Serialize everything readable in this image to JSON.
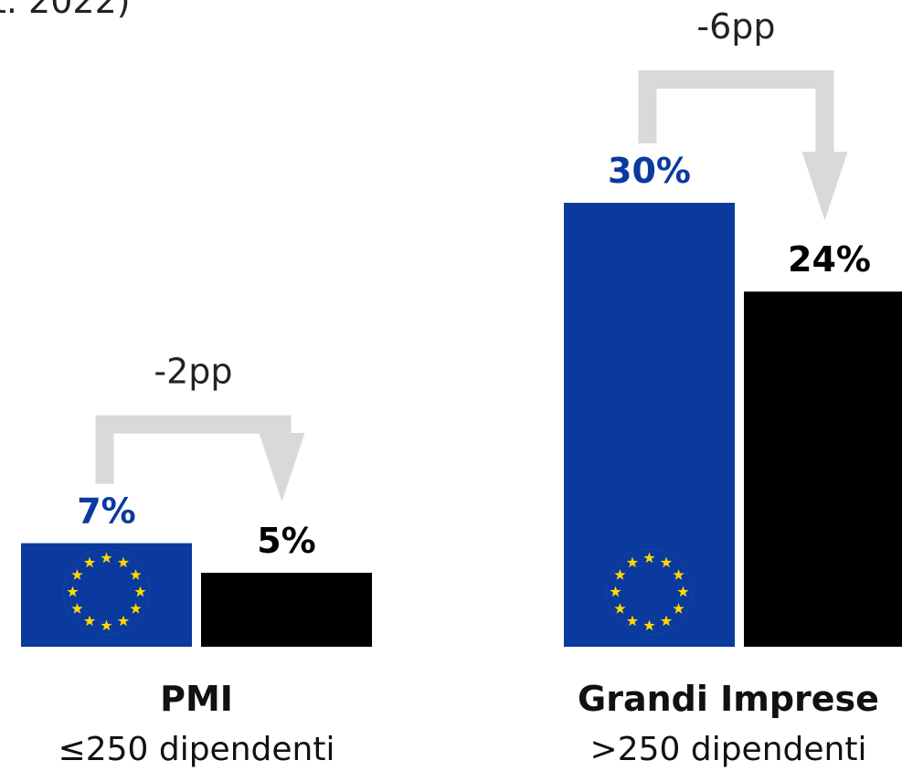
{
  "chart_data": {
    "type": "bar",
    "subtitle": "t. 2022)",
    "categories": [
      "PMI",
      "Grandi Imprese"
    ],
    "category_subtitles": [
      "≤250 dipendenti",
      ">250 dipendenti"
    ],
    "annotations": [
      "-2pp",
      "-6pp"
    ],
    "series": [
      {
        "color": "#0b3a9e",
        "values": [
          7,
          30
        ],
        "value_labels": [
          "7%",
          "30%"
        ]
      },
      {
        "color": "#000000",
        "values": [
          5,
          24
        ],
        "value_labels": [
          "5%",
          "24%"
        ]
      }
    ]
  }
}
